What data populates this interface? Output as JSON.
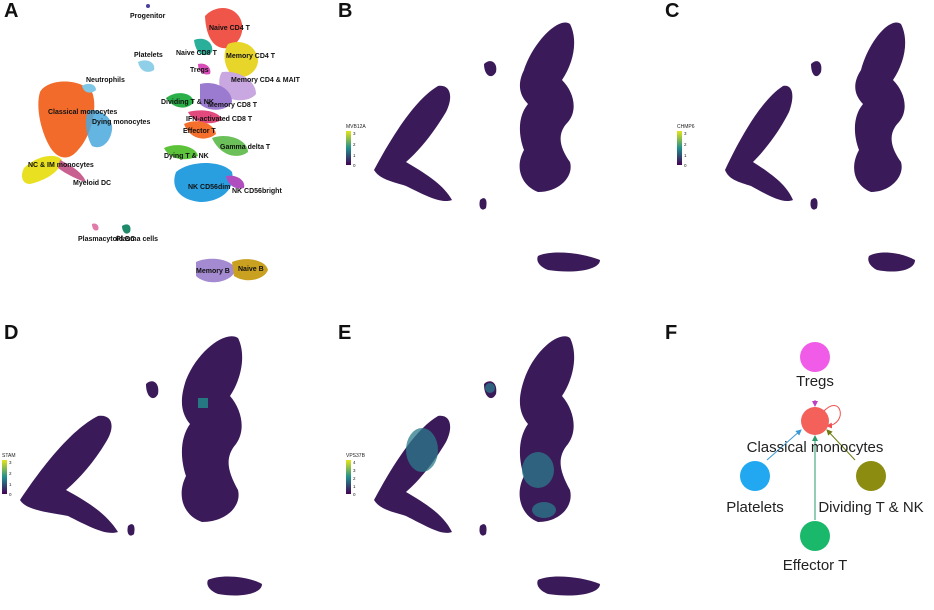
{
  "panels": [
    {
      "letter": "A"
    },
    {
      "letter": "B"
    },
    {
      "letter": "C"
    },
    {
      "letter": "D"
    },
    {
      "letter": "E"
    },
    {
      "letter": "F"
    }
  ],
  "umap_clusters": [
    {
      "label": "Progenitor",
      "color": "#4a3fa0"
    },
    {
      "label": "Naive CD4 T",
      "color": "#f0554a"
    },
    {
      "label": "Naive CD8 T",
      "color": "#2ab09a"
    },
    {
      "label": "Memory CD4 T",
      "color": "#e8d52a"
    },
    {
      "label": "Platelets",
      "color": "#8fd0e8"
    },
    {
      "label": "Tregs",
      "color": "#d84cb8"
    },
    {
      "label": "Memory CD4 & MAIT",
      "color": "#c9a7e0"
    },
    {
      "label": "Neutrophils",
      "color": "#7fc7e6"
    },
    {
      "label": "Dividing T & NK",
      "color": "#2bb049"
    },
    {
      "label": "Memory CD8 T",
      "color": "#9b7bd0"
    },
    {
      "label": "Classical monocytes",
      "color": "#f26b2a"
    },
    {
      "label": "Dying monocytes",
      "color": "#49a8dd"
    },
    {
      "label": "IFN-activated CD8 T",
      "color": "#e24a7e"
    },
    {
      "label": "Effector T",
      "color": "#f5702c"
    },
    {
      "label": "Dying T & NK",
      "color": "#5cc23a"
    },
    {
      "label": "Gamma delta T",
      "color": "#6cc05a"
    },
    {
      "label": "NC & IM monocytes",
      "color": "#e8e020"
    },
    {
      "label": "Myeloid DC",
      "color": "#c86090"
    },
    {
      "label": "NK CD56dim",
      "color": "#2a9fe0"
    },
    {
      "label": "NK CD56bright",
      "color": "#b04ec0"
    },
    {
      "label": "Plasma cells",
      "color": "#1f8a6a"
    },
    {
      "label": "Plasmacytoid DC",
      "color": "#e07aa8"
    },
    {
      "label": "Memory B",
      "color": "#a48ad0"
    },
    {
      "label": "Naive B",
      "color": "#c9a020"
    }
  ],
  "feature_plots": [
    {
      "gene": "MVB12A",
      "ticks": [
        "3",
        "2",
        "1",
        "0"
      ]
    },
    {
      "gene": "CHMP6",
      "ticks": [
        "3",
        "2",
        "1",
        "0"
      ]
    },
    {
      "gene": "STAM",
      "ticks": [
        "3",
        "2",
        "1",
        "0"
      ]
    },
    {
      "gene": "VPS37B",
      "ticks": [
        "4",
        "3",
        "2",
        "1",
        "0"
      ]
    }
  ],
  "colormap": {
    "high": "#e6e419",
    "mid": "#21908c",
    "low": "#440154",
    "base": "#3b1a5a"
  },
  "network": {
    "center": {
      "label": "Classical monocytes",
      "color": "#f4605a"
    },
    "nodes": [
      {
        "label": "Tregs",
        "color": "#f05ce8",
        "edge_color": "#c040c0"
      },
      {
        "label": "Platelets",
        "color": "#22a8f0",
        "edge_color": "#3a9ad8"
      },
      {
        "label": "Dividing T & NK",
        "color": "#8c8c10",
        "edge_color": "#6e7a10"
      },
      {
        "label": "Effector T",
        "color": "#1ab86a",
        "edge_color": "#2a9a6a"
      }
    ],
    "self_loop_color": "#f05050"
  }
}
